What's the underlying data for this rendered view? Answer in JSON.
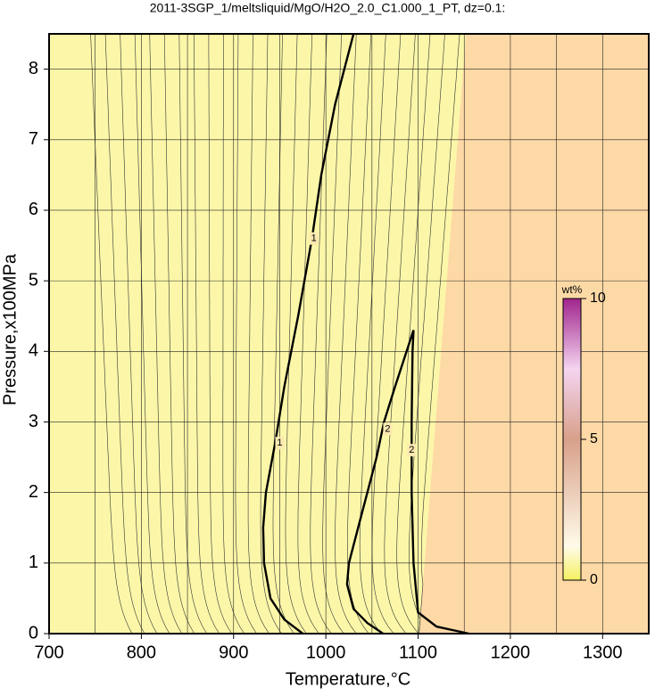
{
  "chart_data": {
    "type": "contour",
    "title": "2011-3SGP_1/meltsliquid/MgO/H2O_2.0_C1.000_1_PT, dz=0.1:",
    "xlabel": "Temperature,°C",
    "ylabel": "Pressure,x100MPa",
    "xlim": [
      700,
      1350
    ],
    "ylim": [
      0,
      8.5
    ],
    "xticks": [
      700,
      800,
      900,
      1000,
      1100,
      1200,
      1300
    ],
    "xminor": [
      750,
      850,
      950,
      1050,
      1150,
      1250
    ],
    "yticks": [
      0,
      1,
      2,
      3,
      4,
      5,
      6,
      7,
      8
    ],
    "grid": true,
    "contours": [
      {
        "level": 1,
        "x": [
          975,
          955,
          940,
          933,
          932,
          935,
          945,
          955,
          970,
          985,
          995,
          1010,
          1030
        ],
        "y": [
          0,
          0.2,
          0.5,
          1,
          1.5,
          2,
          2.7,
          3.5,
          4.5,
          5.6,
          6.5,
          7.5,
          8.5
        ],
        "label_at": [
          [
            950,
            2.7
          ],
          [
            987,
            5.6
          ]
        ]
      },
      {
        "level": 2,
        "x": [
          1155,
          1120,
          1100,
          1095,
          1093,
          1093,
          1094,
          1095,
          1090,
          1075,
          1063,
          1055,
          1045,
          1035,
          1025,
          1023,
          1030,
          1045,
          1062
        ],
        "y": [
          0,
          0.1,
          0.3,
          1,
          2,
          3,
          4,
          4.3,
          4.1,
          3.5,
          3,
          2.5,
          2,
          1.5,
          1,
          0.7,
          0.35,
          0.15,
          0
        ],
        "label_at": [
          [
            1067,
            2.9
          ],
          [
            1093,
            2.6
          ]
        ]
      }
    ],
    "colorbar": {
      "label": "wt%",
      "lim": [
        0,
        10
      ],
      "ticks": [
        0,
        5,
        10
      ]
    }
  }
}
